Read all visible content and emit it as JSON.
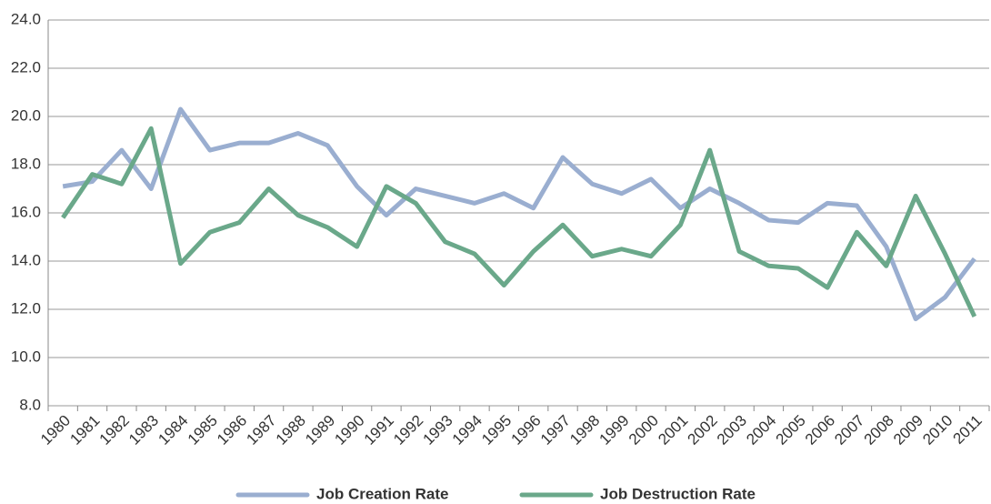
{
  "chart_data": {
    "type": "line",
    "categories": [
      "1980",
      "1981",
      "1982",
      "1983",
      "1984",
      "1985",
      "1986",
      "1987",
      "1988",
      "1989",
      "1990",
      "1991",
      "1992",
      "1993",
      "1994",
      "1995",
      "1996",
      "1997",
      "1998",
      "1999",
      "2000",
      "2001",
      "2002",
      "2003",
      "2004",
      "2005",
      "2006",
      "2007",
      "2008",
      "2009",
      "2010",
      "2011"
    ],
    "series": [
      {
        "name": "Job Creation Rate",
        "color": "#9aaed0",
        "values": [
          17.1,
          17.3,
          18.6,
          17.0,
          20.3,
          18.6,
          18.9,
          18.9,
          19.3,
          18.8,
          17.1,
          15.9,
          17.0,
          16.7,
          16.4,
          16.8,
          16.2,
          18.3,
          17.2,
          16.8,
          17.4,
          16.2,
          17.0,
          16.4,
          15.7,
          15.6,
          16.4,
          16.3,
          14.6,
          11.6,
          12.5,
          14.1
        ]
      },
      {
        "name": "Job Destruction Rate",
        "color": "#6aa88a",
        "values": [
          15.8,
          17.6,
          17.2,
          19.5,
          13.9,
          15.2,
          15.6,
          17.0,
          15.9,
          15.4,
          14.6,
          17.1,
          16.4,
          14.8,
          14.3,
          13.0,
          14.4,
          15.5,
          14.2,
          14.5,
          14.2,
          15.5,
          18.6,
          14.4,
          13.8,
          13.7,
          12.9,
          15.2,
          13.8,
          16.7,
          14.3,
          11.7
        ]
      }
    ],
    "ylim": [
      8,
      24
    ],
    "yticks": [
      {
        "value": 8,
        "label": "8.0"
      },
      {
        "value": 10,
        "label": "10.0"
      },
      {
        "value": 12,
        "label": "12.0"
      },
      {
        "value": 14,
        "label": "14.0"
      },
      {
        "value": 16,
        "label": "16.0"
      },
      {
        "value": 18,
        "label": "18.0"
      },
      {
        "value": 20,
        "label": "20.0"
      },
      {
        "value": 22,
        "label": "22.0"
      },
      {
        "value": 24,
        "label": "24.0"
      }
    ],
    "grid": true,
    "legend": "bottom"
  }
}
